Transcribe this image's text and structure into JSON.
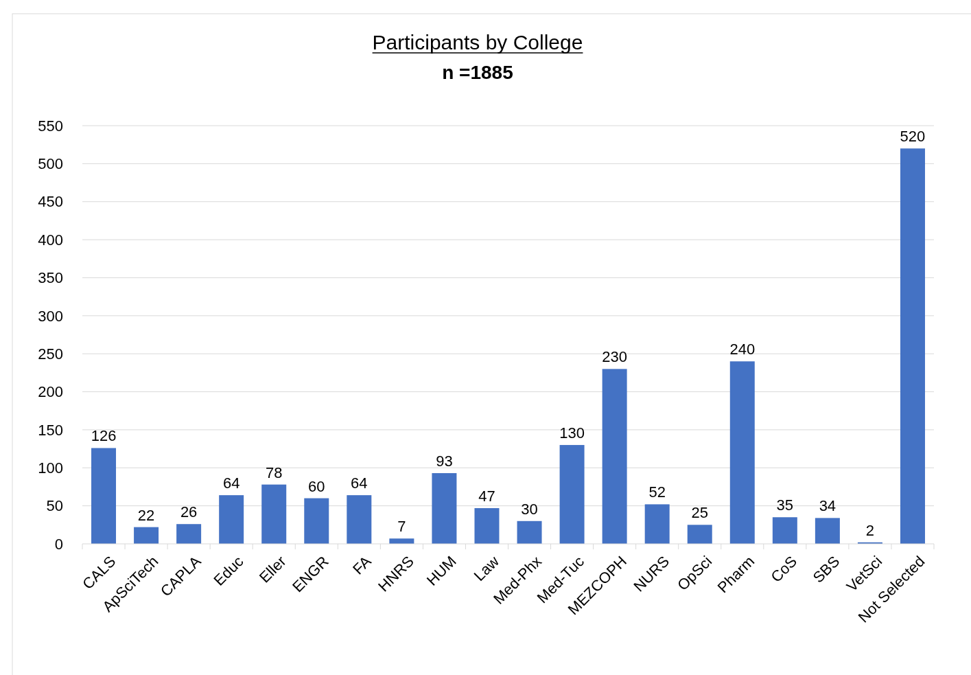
{
  "chart_data": {
    "type": "bar",
    "title": "Participants by College",
    "subtitle": "n =1885",
    "categories": [
      "CALS",
      "ApSciTech",
      "CAPLA",
      "Educ",
      "Eller",
      "ENGR",
      "FA",
      "HNRS",
      "HUM",
      "Law",
      "Med-Phx",
      "Med-Tuc",
      "MEZCOPH",
      "NURS",
      "OpSci",
      "Pharm",
      "CoS",
      "SBS",
      "VetSci",
      "Not Selected"
    ],
    "values": [
      126,
      22,
      26,
      64,
      78,
      60,
      64,
      7,
      93,
      47,
      30,
      130,
      230,
      52,
      25,
      240,
      35,
      34,
      2,
      520
    ],
    "color": "#4472c4",
    "ylim": [
      0,
      550
    ],
    "yticks": [
      0,
      50,
      100,
      150,
      200,
      250,
      300,
      350,
      400,
      450,
      500,
      550
    ],
    "grid": "y",
    "data_labels": true
  }
}
